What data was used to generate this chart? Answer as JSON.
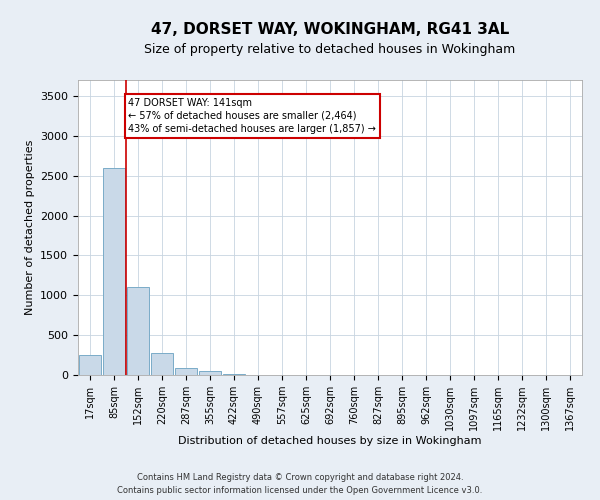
{
  "title": "47, DORSET WAY, WOKINGHAM, RG41 3AL",
  "subtitle": "Size of property relative to detached houses in Wokingham",
  "xlabel": "Distribution of detached houses by size in Wokingham",
  "ylabel": "Number of detached properties",
  "bar_labels": [
    "17sqm",
    "85sqm",
    "152sqm",
    "220sqm",
    "287sqm",
    "355sqm",
    "422sqm",
    "490sqm",
    "557sqm",
    "625sqm",
    "692sqm",
    "760sqm",
    "827sqm",
    "895sqm",
    "962sqm",
    "1030sqm",
    "1097sqm",
    "1165sqm",
    "1232sqm",
    "1300sqm",
    "1367sqm"
  ],
  "bar_values": [
    250,
    2600,
    1100,
    270,
    90,
    45,
    15,
    0,
    0,
    0,
    0,
    0,
    0,
    0,
    0,
    0,
    0,
    0,
    0,
    0,
    0
  ],
  "bar_color": "#c9d9e8",
  "bar_edge_color": "#7aacc8",
  "highlight_line_color": "#cc0000",
  "annotation_text": "47 DORSET WAY: 141sqm\n← 57% of detached houses are smaller (2,464)\n43% of semi-detached houses are larger (1,857) →",
  "annotation_box_color": "#ffffff",
  "annotation_box_edge": "#cc0000",
  "ylim": [
    0,
    3700
  ],
  "yticks": [
    0,
    500,
    1000,
    1500,
    2000,
    2500,
    3000,
    3500
  ],
  "footer1": "Contains HM Land Registry data © Crown copyright and database right 2024.",
  "footer2": "Contains public sector information licensed under the Open Government Licence v3.0.",
  "background_color": "#e8eef5",
  "plot_background": "#ffffff",
  "grid_color": "#c8d4e0",
  "title_fontsize": 11,
  "subtitle_fontsize": 9,
  "ylabel_fontsize": 8,
  "xlabel_fontsize": 8,
  "tick_fontsize": 7,
  "annotation_fontsize": 7,
  "footer_fontsize": 6
}
